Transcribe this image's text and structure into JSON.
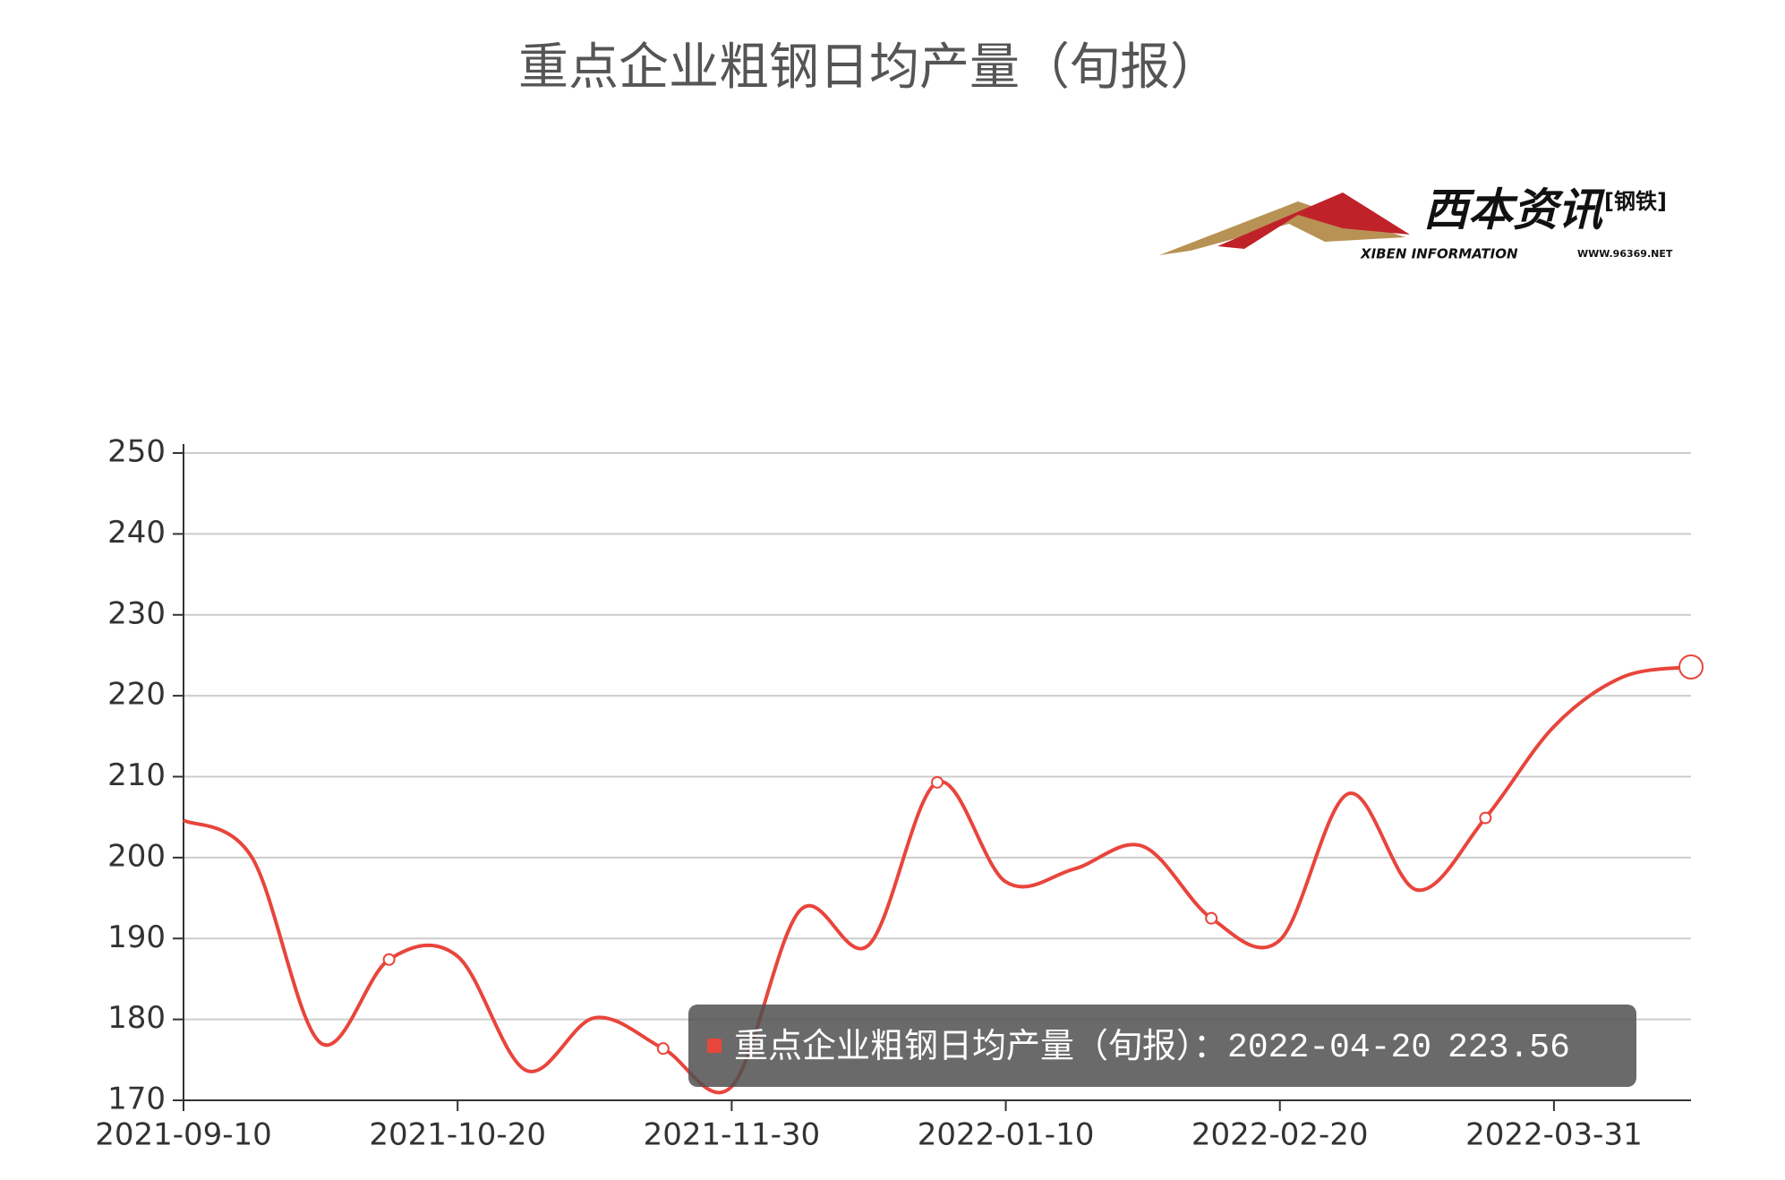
{
  "chart_data": {
    "type": "line",
    "title": "重点企业粗钢日均产量（旬报）",
    "categories": [
      "2021-09-10",
      null,
      null,
      null,
      "2021-10-20",
      null,
      null,
      null,
      "2021-11-30",
      null,
      null,
      null,
      "2022-01-10",
      null,
      null,
      null,
      "2022-02-20",
      null,
      null,
      null,
      "2022-03-31",
      null,
      null
    ],
    "series": [
      {
        "name": "重点企业粗钢日均产量（旬报）",
        "color": "#e8453c",
        "values": [
          204.6,
          200.0,
          177.1,
          187.4,
          187.8,
          173.7,
          180.2,
          176.4,
          171.7,
          193.5,
          189.2,
          209.3,
          197.0,
          198.6,
          201.4,
          192.5,
          189.8,
          207.9,
          196.0,
          204.9,
          216.2,
          222.3,
          223.56
        ]
      }
    ],
    "ylim": [
      170,
      250
    ],
    "yticks": [
      170,
      180,
      190,
      200,
      210,
      220,
      230,
      240,
      250
    ],
    "grid": true,
    "tooltip": {
      "series": "重点企业粗钢日均产量（旬报）",
      "separator": "：",
      "date": "2022-04-20",
      "value": 223.56
    }
  },
  "logo": {
    "name": "西本资讯",
    "tag": "[钢铁]",
    "english": "XIBEN INFORMATION",
    "url": "WWW.96369.NET"
  }
}
